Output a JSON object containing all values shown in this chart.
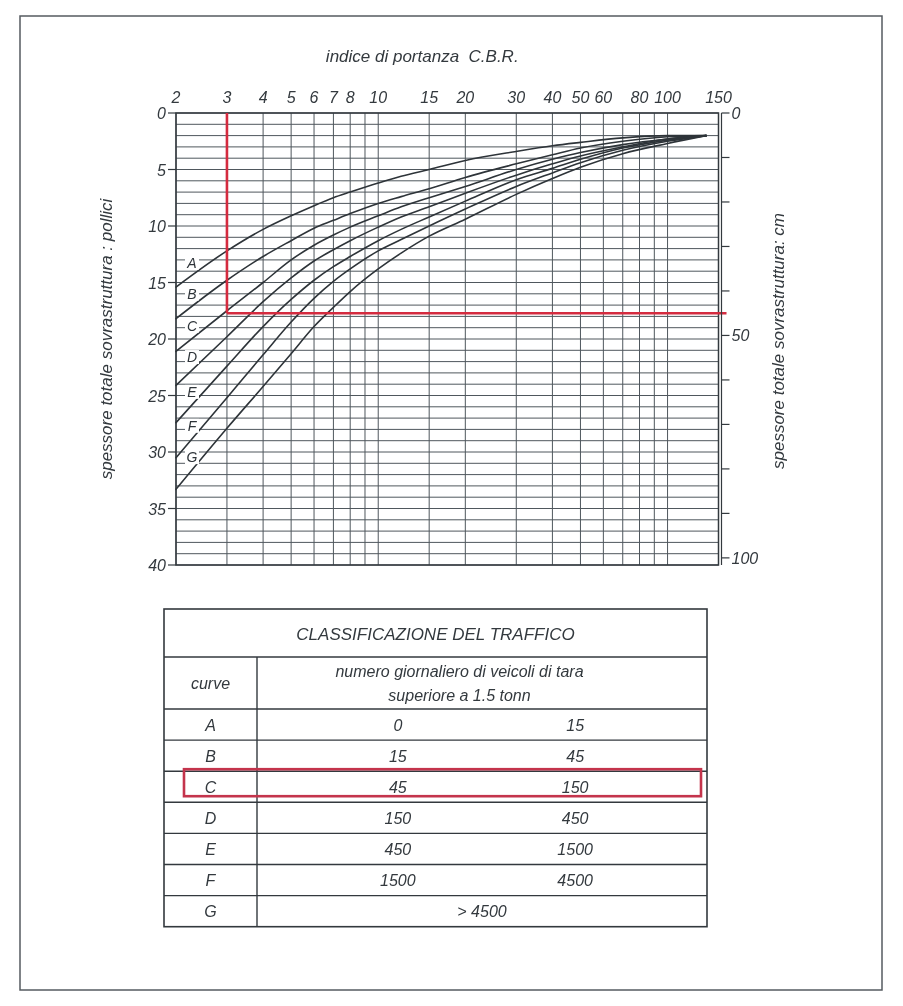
{
  "chart_data": [
    {
      "type": "line",
      "xlabel": "indice di portanza  C.B.R.",
      "ylabel": "spessore totale sovrastruttura : pollici",
      "y2label": "spessore totale sovrastruttura: cm",
      "log": "x",
      "grid": true,
      "xlim": [
        2,
        150
      ],
      "xticks": [
        2,
        3,
        4,
        5,
        6,
        7,
        8,
        {
          "value": 9,
          "label": null
        },
        10,
        15,
        20,
        30,
        40,
        50,
        60,
        {
          "value": 70,
          "label": null
        },
        80,
        {
          "value": 90,
          "label": null
        },
        100,
        150
      ],
      "ylim": [
        40,
        0
      ],
      "yticks": [
        0,
        {
          "value": 1,
          "label": null
        },
        {
          "value": 2,
          "label": null
        },
        {
          "value": 3,
          "label": null
        },
        {
          "value": 4,
          "label": null
        },
        5,
        {
          "value": 6,
          "label": null
        },
        {
          "value": 7,
          "label": null
        },
        {
          "value": 8,
          "label": null
        },
        {
          "value": 9,
          "label": null
        },
        10,
        {
          "value": 11,
          "label": null
        },
        {
          "value": 12,
          "label": null
        },
        {
          "value": 13,
          "label": null
        },
        {
          "value": 14,
          "label": null
        },
        15,
        {
          "value": 16,
          "label": null
        },
        {
          "value": 17,
          "label": null
        },
        {
          "value": 18,
          "label": null
        },
        {
          "value": 19,
          "label": null
        },
        20,
        {
          "value": 21,
          "label": null
        },
        {
          "value": 22,
          "label": null
        },
        {
          "value": 23,
          "label": null
        },
        {
          "value": 24,
          "label": null
        },
        25,
        {
          "value": 26,
          "label": null
        },
        {
          "value": 27,
          "label": null
        },
        {
          "value": 28,
          "label": null
        },
        {
          "value": 29,
          "label": null
        },
        30,
        {
          "value": 31,
          "label": null
        },
        {
          "value": 32,
          "label": null
        },
        {
          "value": 33,
          "label": null
        },
        {
          "value": 34,
          "label": null
        },
        35,
        {
          "value": 36,
          "label": null
        },
        {
          "value": 37,
          "label": null
        },
        {
          "value": 38,
          "label": null
        },
        {
          "value": 39,
          "label": null
        },
        40
      ],
      "y2lim": [
        101.6,
        0
      ],
      "y2ticks": [
        0,
        {
          "value": 10,
          "label": null
        },
        {
          "value": 20,
          "label": null
        },
        {
          "value": 30,
          "label": null
        },
        {
          "value": 40,
          "label": null
        },
        50,
        {
          "value": 60,
          "label": null
        },
        {
          "value": 70,
          "label": null
        },
        {
          "value": 80,
          "label": null
        },
        {
          "value": 90,
          "label": null
        },
        100
      ],
      "x": [
        2,
        3,
        4,
        5,
        6,
        7,
        8,
        10,
        12,
        15,
        20,
        30,
        40,
        50,
        70,
        100,
        136
      ],
      "series": [
        {
          "name": "A",
          "color": "#2e3439",
          "values": [
            15.4,
            12.2,
            10.3,
            9.1,
            8.2,
            7.5,
            7.0,
            6.2,
            5.6,
            5.0,
            4.2,
            3.4,
            2.9,
            2.6,
            2.2,
            2.0,
            2.0
          ]
        },
        {
          "name": "B",
          "color": "#2e3439",
          "values": [
            18.2,
            14.8,
            12.7,
            11.3,
            10.2,
            9.5,
            8.9,
            8.0,
            7.4,
            6.7,
            5.7,
            4.5,
            3.7,
            3.1,
            2.5,
            2.1,
            2.0
          ]
        },
        {
          "name": "C",
          "color": "#2e3439",
          "values": [
            21.1,
            17.5,
            15.0,
            13.0,
            11.7,
            10.8,
            10.1,
            9.1,
            8.3,
            7.5,
            6.5,
            5.0,
            4.1,
            3.5,
            2.8,
            2.3,
            2.0
          ]
        },
        {
          "name": "D",
          "color": "#2e3439",
          "values": [
            24.1,
            19.8,
            16.7,
            14.6,
            13.1,
            12.1,
            11.3,
            10.1,
            9.2,
            8.3,
            7.1,
            5.5,
            4.5,
            3.8,
            3.0,
            2.3,
            2.0
          ]
        },
        {
          "name": "E",
          "color": "#2e3439",
          "values": [
            27.4,
            22.4,
            18.9,
            16.5,
            14.8,
            13.6,
            12.7,
            11.3,
            10.3,
            9.2,
            7.8,
            5.9,
            4.9,
            4.1,
            3.1,
            2.4,
            2.0
          ]
        },
        {
          "name": "F",
          "color": "#2e3439",
          "values": [
            30.5,
            25.2,
            21.4,
            18.5,
            16.4,
            14.9,
            13.8,
            12.2,
            11.2,
            10.0,
            8.5,
            6.5,
            5.3,
            4.4,
            3.3,
            2.5,
            2.0
          ]
        },
        {
          "name": "G",
          "color": "#2e3439",
          "values": [
            33.3,
            27.9,
            24.2,
            21.3,
            18.9,
            17.2,
            15.8,
            13.8,
            12.4,
            10.9,
            9.4,
            7.2,
            5.8,
            4.8,
            3.6,
            2.7,
            2.0
          ]
        }
      ],
      "ref_lines": [
        {
          "axis": "x",
          "value": 3,
          "color": "#d42b3f"
        },
        {
          "axis": "y2",
          "value": 45,
          "color": "#d42b3f"
        }
      ]
    },
    {
      "type": "other",
      "title": "CLASSIFICAZIONE DEL TRAFFICO",
      "annotations": [
        "curve",
        "numero giornaliero di veicoli di tara superiore a 1.5 tonn"
      ],
      "categories": [
        "A",
        "B",
        "C",
        "D",
        "E",
        "F",
        "G"
      ],
      "series": [
        {
          "values": [
            0,
            15,
            45,
            150,
            450,
            1500,
            4500
          ],
          "value_labels": [
            "0",
            "15",
            "45",
            "150",
            "450",
            "1500",
            "> 4500"
          ]
        },
        {
          "values": [
            15,
            45,
            150,
            450,
            1500,
            4500,
            null
          ],
          "value_labels": [
            "15",
            "45",
            "150",
            "450",
            "1500",
            "4500",
            null
          ]
        }
      ]
    }
  ]
}
